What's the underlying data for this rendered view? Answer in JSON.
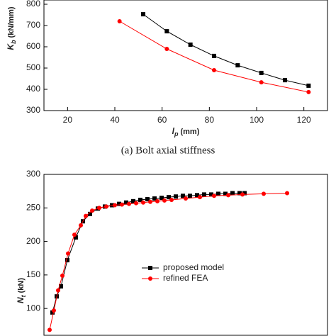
{
  "chart_data": [
    {
      "type": "line",
      "ylabel": {
        "symbol": "K",
        "subscript": "b",
        "unit": "(kN/mm)"
      },
      "xlabel": {
        "symbol": "l",
        "subscript": "p",
        "unit": "(mm)"
      },
      "caption": "(a) Bolt axial stiffness",
      "xlim": [
        10,
        130
      ],
      "xticks": [
        20,
        40,
        60,
        80,
        100,
        120
      ],
      "ylim": [
        300,
        820
      ],
      "yticks": [
        300,
        400,
        500,
        600,
        700,
        800
      ],
      "series": [
        {
          "color": "#000000",
          "marker": "square",
          "x": [
            52,
            62,
            72,
            82,
            92,
            102,
            112,
            122
          ],
          "values": [
            753,
            673,
            610,
            557,
            513,
            477,
            443,
            417
          ]
        },
        {
          "color": "#ff0000",
          "marker": "circle",
          "x": [
            42,
            62,
            82,
            102,
            122
          ],
          "values": [
            720,
            590,
            490,
            433,
            387
          ]
        }
      ]
    },
    {
      "type": "line",
      "ylabel": {
        "symbol": "N",
        "subscript": "t",
        "unit": "(kN)"
      },
      "xlim": [
        0,
        40
      ],
      "ylim": [
        60,
        300
      ],
      "yticks": [
        100,
        150,
        200,
        250,
        300
      ],
      "legend": "center",
      "series": [
        {
          "name": "proposed model",
          "color": "#000000",
          "marker": "square",
          "x": [
            1.2,
            1.8,
            2.4,
            3.3,
            4.5,
            5.5,
            6.5,
            7.6,
            8.6,
            9.6,
            10.6,
            11.6,
            12.6,
            13.6,
            14.6,
            15.6,
            16.6,
            17.6,
            18.6,
            19.6,
            20.6,
            21.6,
            22.6,
            23.6,
            24.6,
            25.6,
            26.6,
            27.6,
            28.3
          ],
          "values": [
            94,
            118,
            133,
            172,
            206,
            230,
            241,
            249,
            252,
            254,
            256,
            258,
            260,
            262,
            263,
            264,
            265,
            266,
            267,
            268,
            268,
            269,
            270,
            270,
            271,
            271,
            272,
            272,
            272
          ]
        },
        {
          "name": "refined FEA",
          "color": "#ff0000",
          "marker": "circle",
          "x": [
            0.8,
            1.4,
            2.0,
            2.6,
            3.4,
            4.3,
            5.2,
            5.9,
            6.8,
            7.8,
            8.8,
            10,
            11,
            12,
            13,
            14,
            15,
            16,
            17,
            18,
            20,
            22,
            24,
            26,
            28,
            31,
            34.3
          ],
          "values": [
            68,
            97,
            127,
            149,
            182,
            210,
            224,
            238,
            246,
            250,
            252,
            254,
            255,
            256,
            257,
            258,
            259,
            260,
            261,
            262,
            264,
            266,
            268,
            269,
            270,
            271,
            272
          ]
        }
      ]
    }
  ]
}
